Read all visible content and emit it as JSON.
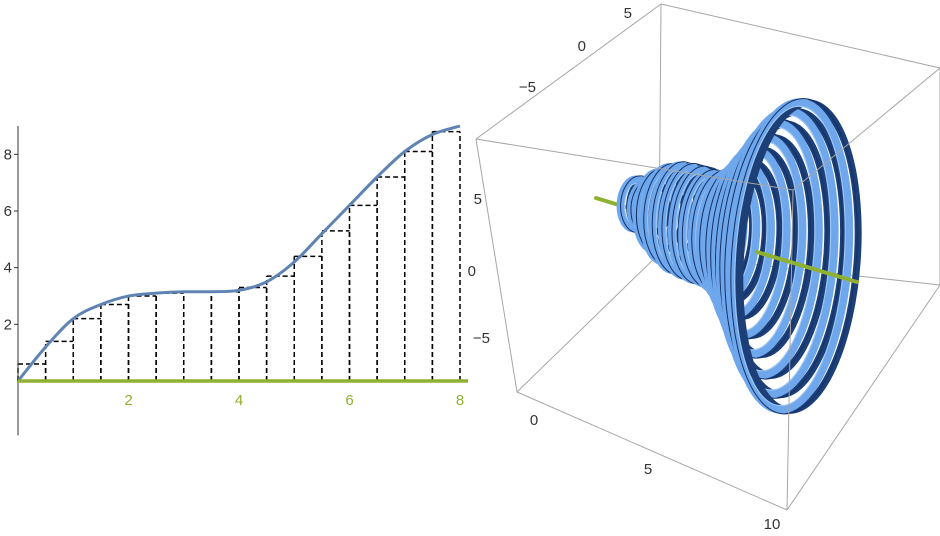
{
  "colors": {
    "curve": "#5f84b4",
    "axis_green": "#8fb131",
    "rings_light": "#6fa7ec",
    "rings_dark": "#1c3f78",
    "box": "#a6a6a6",
    "step": "#000000"
  },
  "chart_data": [
    {
      "type": "line",
      "title": "",
      "xlabel": "",
      "ylabel": "",
      "xlim": [
        0,
        8
      ],
      "ylim": [
        -1,
        9
      ],
      "x_ticks": [
        "2",
        "4",
        "6",
        "8"
      ],
      "y_ticks": [
        "2",
        "4",
        "6",
        "8"
      ],
      "series": [
        {
          "kind": "curve",
          "x": [
            0,
            0.5,
            1,
            1.5,
            2,
            2.5,
            3,
            3.5,
            4,
            4.5,
            5,
            5.5,
            6,
            6.5,
            7,
            7.5,
            8
          ],
          "y": [
            0,
            1.2,
            2.2,
            2.7,
            3.0,
            3.1,
            3.15,
            3.15,
            3.2,
            3.5,
            4.2,
            5.2,
            6.2,
            7.2,
            8.1,
            8.7,
            9.0
          ]
        },
        {
          "kind": "riemann-rectangles",
          "width": 0.5,
          "left_x": [
            0,
            0.5,
            1,
            1.5,
            2,
            2.5,
            3,
            3.5,
            4,
            4.5,
            5,
            5.5,
            6,
            6.5,
            7,
            7.5
          ],
          "heights": [
            0.6,
            1.4,
            2.2,
            2.7,
            3.0,
            3.1,
            3.15,
            3.15,
            3.3,
            3.7,
            4.4,
            5.3,
            6.2,
            7.2,
            8.1,
            8.8
          ]
        }
      ],
      "axis_of_rotation": {
        "from_x": 0,
        "to_x": 8,
        "y": 0
      }
    },
    {
      "type": "3d-surface",
      "title": "",
      "description": "solid of revolution made of ring slices",
      "axes": {
        "x_ticks": [
          "0",
          "5",
          "10"
        ],
        "y_ticks": [
          "5",
          "0",
          "−5"
        ],
        "z_ticks": [
          "5",
          "0",
          "−5"
        ]
      },
      "ring_count": 16
    }
  ]
}
